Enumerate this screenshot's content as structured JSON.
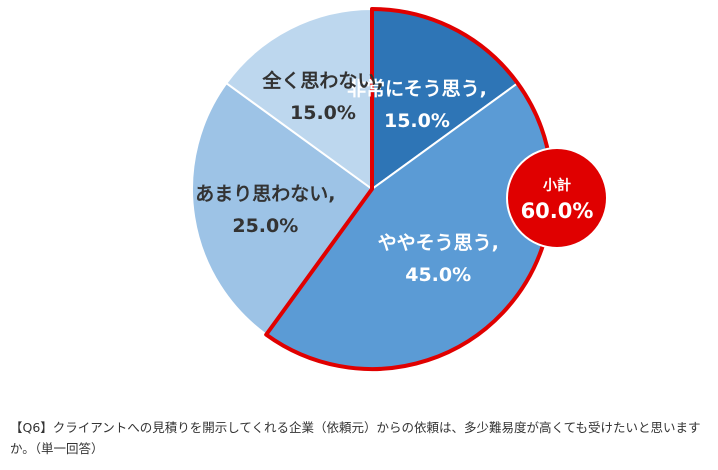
{
  "chart_data": {
    "type": "pie",
    "slices": [
      {
        "category": "非常にそう思う,",
        "value": 15.0,
        "label": "15.0%",
        "color": "#2E75B6"
      },
      {
        "category": "ややそう思う,",
        "value": 45.0,
        "label": "45.0%",
        "color": "#5B9BD5"
      },
      {
        "category": "あまり思わない,",
        "value": 25.0,
        "label": "25.0%",
        "color": "#9DC3E6"
      },
      {
        "category": "全く思わない,",
        "value": 15.0,
        "label": "15.0%",
        "color": "#BDD7EE"
      }
    ],
    "subtotal": {
      "label": "小計",
      "value": "60.0%",
      "slices_included": [
        "非常にそう思う,",
        "ややそう思う,"
      ],
      "color": "#E00000"
    },
    "highlight_outline_color": "#E00000"
  },
  "caption": {
    "line1": "【Q6】クライアントへの見積りを開示してくれる企業（依頼元）からの依頼は、多少難易度が高くても受けたいと思います",
    "line2": "か。（単一回答）"
  }
}
